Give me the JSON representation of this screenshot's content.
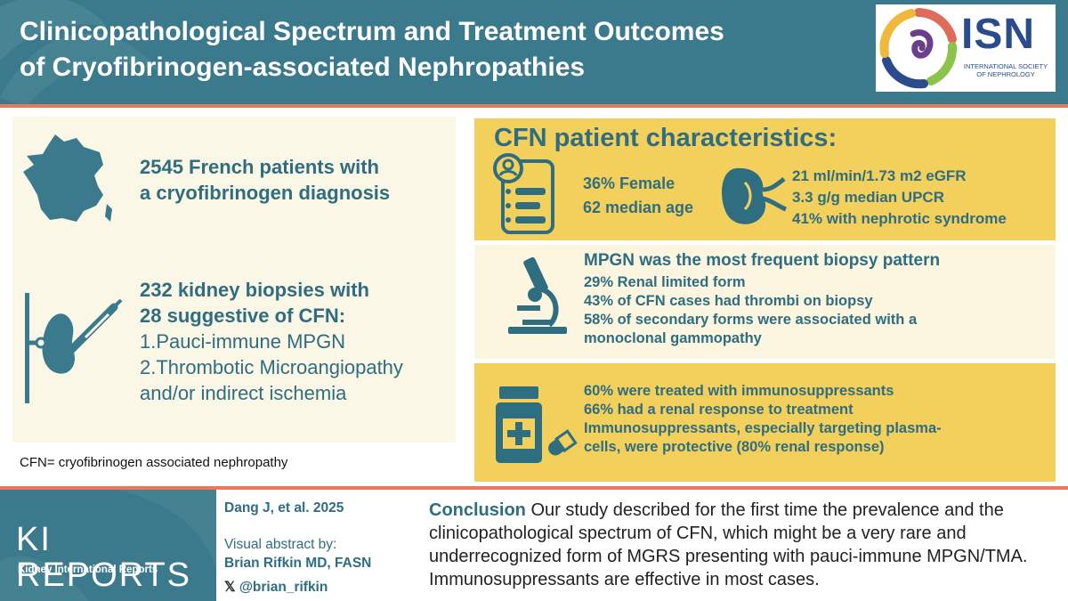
{
  "header": {
    "title_line1": "Clinicopathological Spectrum and Treatment Outcomes",
    "title_line2": "of Cryofibrinogen-associated Nephropathies",
    "logo_text": "ISN",
    "logo_subtext": "INTERNATIONAL SOCIETY OF NEPHROLOGY"
  },
  "left": {
    "stat1_line1": "2545 French patients with",
    "stat1_line2": "a cryofibrinogen diagnosis",
    "stat2_line1": "232 kidney biopsies with",
    "stat2_line2": "28 suggestive of CFN:",
    "item1": "1.Pauci-immune MPGN",
    "item2_line1": "2.Thrombotic Microangiopathy",
    "item2_line2": "and/or indirect ischemia",
    "definition": "CFN= cryofibrinogen associated nephropathy"
  },
  "characteristics": {
    "heading": "CFN patient characteristics:",
    "female_pct": "36%",
    "female_label": "Female",
    "age": "62 median age",
    "egfr": "21 ml/min/1.73 m2 eGFR",
    "upcr": "3.3 g/g median UPCR",
    "nephrotic": "41% with nephrotic syndrome"
  },
  "biopsy": {
    "heading": "MPGN was the most frequent biopsy pattern",
    "line1": "29% Renal limited form",
    "line2": "43% of CFN cases had thrombi on biopsy",
    "line3a": "58% of secondary forms were associated with a",
    "line3b": "monoclonal gammopathy"
  },
  "treatment": {
    "line1": "60% were treated with immunosuppressants",
    "line2": "66% had a renal response to treatment",
    "line3a": "Immunosuppressants, especially targeting plasma-",
    "line3b": "cells, were protective (80% renal response)"
  },
  "footer": {
    "journal": "KI REPORTS",
    "journal_sub": "Kidney International Reports",
    "citation": "Dang J, et al. 2025",
    "abstract_by": "Visual abstract by:",
    "author": "Brian Rifkin MD, FASN",
    "handle": "@brian_rifkin",
    "x_icon": "𝕏",
    "conclusion_label": "Conclusion",
    "conclusion_text": " Our study described for the first time the prevalence and the clinicopathological spectrum of CFN, which might be a very rare and underrecognized form of MGRS presenting with pauci-immune MPGN/TMA. Immunosuppressants are effective in most cases."
  },
  "colors": {
    "teal": "#3b7a8c",
    "text_teal": "#2f6d80",
    "yellow": "#f3cf5b",
    "cream": "#fbf7e6",
    "coral": "#e57a5f"
  }
}
